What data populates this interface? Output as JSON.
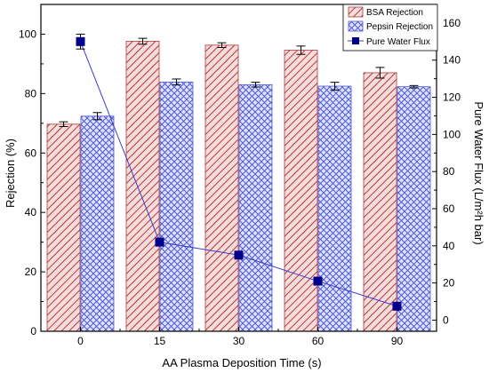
{
  "chart_data": {
    "type": "bar",
    "xlabel": "AA Plasma Deposition Time (s)",
    "ylabel_left": "Rejection (%)",
    "ylabel_right": "Pure Water Flux (L/m²h bar)",
    "categories": [
      "0",
      "15",
      "30",
      "60",
      "90"
    ],
    "ylim_left": [
      0,
      110
    ],
    "yticks_left": [
      0,
      20,
      40,
      60,
      80,
      100
    ],
    "ylim_right": [
      -6,
      170
    ],
    "yticks_right": [
      0,
      20,
      40,
      60,
      80,
      100,
      120,
      140,
      160
    ],
    "grid": false,
    "legend_position": "top-right",
    "series": [
      {
        "name": "BSA Rejection",
        "kind": "bar",
        "axis": "left",
        "values": [
          69.7,
          97.6,
          96.3,
          94.6,
          87.0
        ],
        "errors": [
          0.8,
          1.0,
          0.8,
          1.4,
          1.8
        ],
        "color": "#c0504d",
        "pattern": "diagonal-hatch"
      },
      {
        "name": "Pepsin Rejection",
        "kind": "bar",
        "axis": "left",
        "values": [
          72.4,
          83.9,
          83.0,
          82.5,
          82.3
        ],
        "errors": [
          1.2,
          1.0,
          0.8,
          1.3,
          0.4
        ],
        "color": "#4f5bd5",
        "pattern": "cross-hatch"
      },
      {
        "name": "Pure Water Flux",
        "kind": "line",
        "axis": "right",
        "values": [
          150,
          42,
          35,
          21,
          7.5
        ],
        "errors": [
          4,
          0,
          0,
          0,
          0
        ],
        "color": "#00008b",
        "marker": "square"
      }
    ]
  }
}
